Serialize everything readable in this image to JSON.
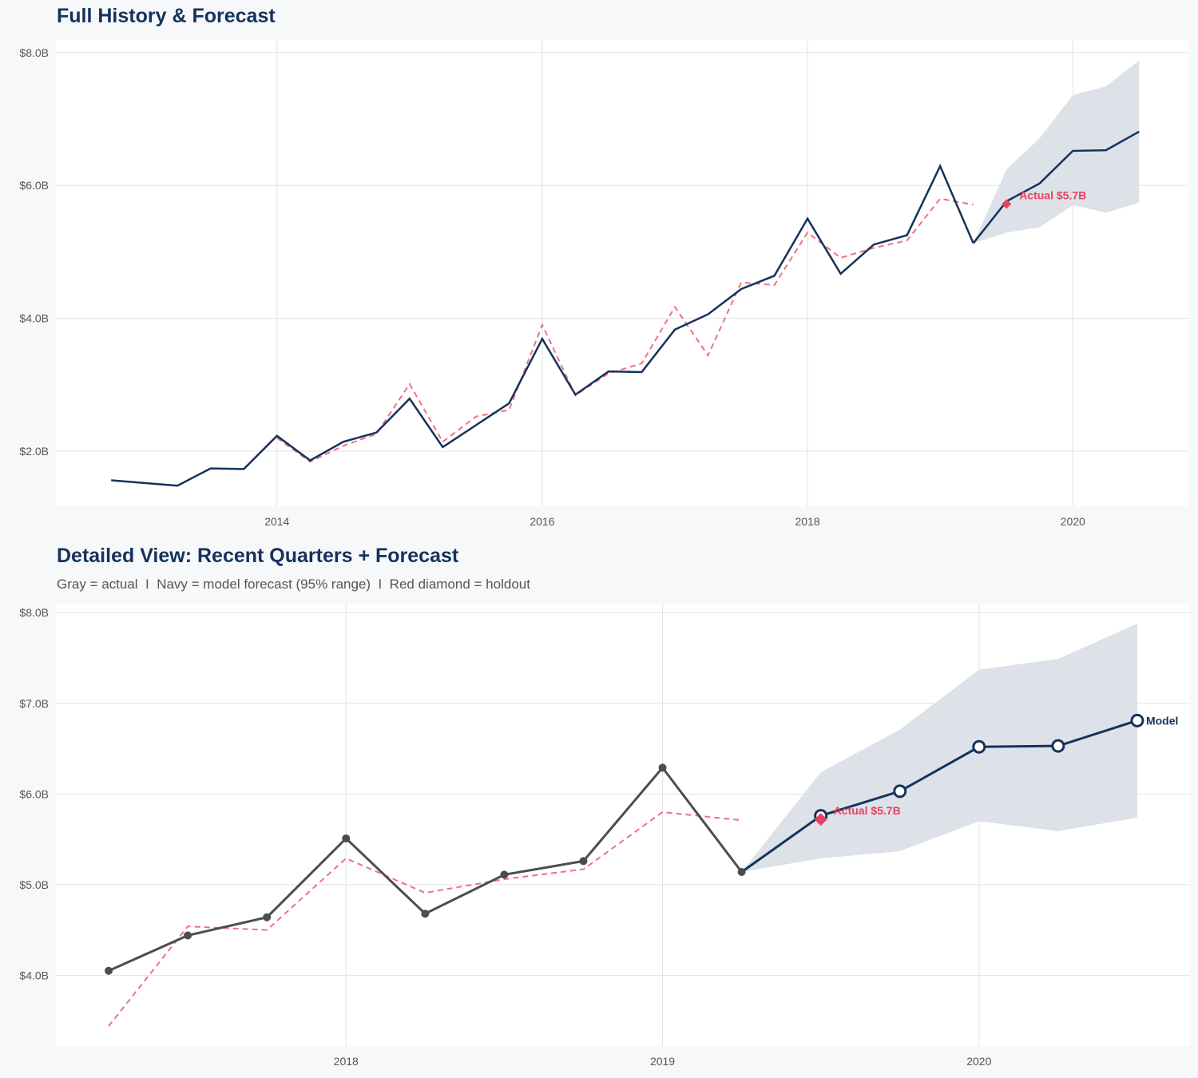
{
  "colors": {
    "navy": "#14325c",
    "gray": "#4d4d4d",
    "fitted": "#ef7088",
    "holdout": "#e8415f",
    "band": "#dbe0e7",
    "grid": "#e3e3e3"
  },
  "chart_data": [
    {
      "type": "line",
      "title": "Full History & Forecast",
      "xlim": [
        "2012-05-01",
        "2020-11-15"
      ],
      "ylim": [
        1.17,
        8.19
      ],
      "x_ticks": [
        "2014",
        "2016",
        "2018",
        "2020"
      ],
      "y_ticks": [
        {
          "value": 2,
          "label": "$2.0B"
        },
        {
          "value": 4,
          "label": "$4.0B"
        },
        {
          "value": 6,
          "label": "$6.0B"
        },
        {
          "value": 8,
          "label": "$8.0B"
        }
      ],
      "grid": true,
      "actual": {
        "x": [
          "2012-10-01",
          "2013-04-01",
          "2013-07-01",
          "2013-10-01",
          "2014-01-01",
          "2014-04-01",
          "2014-07-01",
          "2014-10-01",
          "2015-01-01",
          "2015-04-01",
          "2015-07-01",
          "2015-10-01",
          "2016-01-01",
          "2016-04-01",
          "2016-07-01",
          "2016-10-01",
          "2017-01-01",
          "2017-04-01",
          "2017-07-01",
          "2017-10-01",
          "2018-01-01",
          "2018-04-01",
          "2018-07-01",
          "2018-10-01",
          "2019-01-01",
          "2019-04-01"
        ],
        "y": [
          1.56,
          1.48,
          1.74,
          1.73,
          2.23,
          1.86,
          2.14,
          2.28,
          2.79,
          2.06,
          2.39,
          2.72,
          3.69,
          2.85,
          3.2,
          3.19,
          3.83,
          4.06,
          4.44,
          4.64,
          5.5,
          4.67,
          5.11,
          5.25,
          6.29,
          5.13
        ]
      },
      "fitted": {
        "x": [
          "2014-01-01",
          "2014-04-01",
          "2014-07-01",
          "2014-10-01",
          "2015-01-01",
          "2015-04-01",
          "2015-07-01",
          "2015-10-01",
          "2016-01-01",
          "2016-04-01",
          "2016-07-01",
          "2016-10-01",
          "2017-01-01",
          "2017-04-01",
          "2017-07-01",
          "2017-10-01",
          "2018-01-01",
          "2018-04-01",
          "2018-07-01",
          "2018-10-01",
          "2019-01-01",
          "2019-04-01"
        ],
        "y": [
          2.2,
          1.84,
          2.08,
          2.26,
          3.01,
          2.14,
          2.52,
          2.62,
          3.9,
          2.84,
          3.17,
          3.32,
          4.17,
          3.44,
          4.54,
          4.5,
          5.29,
          4.91,
          5.06,
          5.17,
          5.8,
          5.71
        ]
      },
      "forecast": {
        "x": [
          "2019-04-01",
          "2019-07-01",
          "2019-10-01",
          "2020-01-01",
          "2020-04-01",
          "2020-07-01"
        ],
        "y": [
          5.13,
          5.76,
          6.03,
          6.52,
          6.53,
          6.81
        ],
        "lower": [
          5.13,
          5.29,
          5.37,
          5.7,
          5.59,
          5.74
        ],
        "upper": [
          5.13,
          6.24,
          6.71,
          7.36,
          7.49,
          7.88
        ]
      },
      "holdout": {
        "x": "2019-07-01",
        "y": 5.72,
        "label": "Actual $5.7B"
      }
    },
    {
      "type": "line",
      "title": "Detailed View: Recent Quarters + Forecast",
      "subtitle": "Gray = actual  I  Navy = model forecast (95% range)  I  Red diamond = holdout",
      "xlim": [
        "2017-02-01",
        "2020-09-01"
      ],
      "ylim": [
        3.22,
        8.09
      ],
      "x_ticks": [
        "2018",
        "2019",
        "2020"
      ],
      "y_ticks": [
        {
          "value": 4,
          "label": "$4.0B"
        },
        {
          "value": 5,
          "label": "$5.0B"
        },
        {
          "value": 6,
          "label": "$6.0B"
        },
        {
          "value": 7,
          "label": "$7.0B"
        },
        {
          "value": 8,
          "label": "$8.0B"
        }
      ],
      "grid": true,
      "actual": {
        "x": [
          "2017-04-01",
          "2017-07-01",
          "2017-10-01",
          "2018-01-01",
          "2018-04-01",
          "2018-07-01",
          "2018-10-01",
          "2019-01-01",
          "2019-04-01"
        ],
        "y": [
          4.05,
          4.44,
          4.64,
          5.51,
          4.68,
          5.11,
          5.26,
          6.29,
          5.14
        ]
      },
      "fitted": {
        "x": [
          "2017-04-01",
          "2017-07-01",
          "2017-10-01",
          "2018-01-01",
          "2018-04-01",
          "2018-07-01",
          "2018-10-01",
          "2019-01-01",
          "2019-04-01"
        ],
        "y": [
          3.44,
          4.54,
          4.5,
          5.29,
          4.91,
          5.06,
          5.17,
          5.8,
          5.71
        ]
      },
      "forecast": {
        "x": [
          "2019-04-01",
          "2019-07-01",
          "2019-10-01",
          "2020-01-01",
          "2020-04-01",
          "2020-07-01"
        ],
        "y": [
          5.14,
          5.76,
          6.03,
          6.52,
          6.53,
          6.81
        ],
        "lower": [
          5.14,
          5.29,
          5.37,
          5.7,
          5.59,
          5.74
        ],
        "upper": [
          5.14,
          6.24,
          6.71,
          7.37,
          7.49,
          7.88
        ],
        "label": "Model"
      },
      "holdout": {
        "x": "2019-07-01",
        "y": 5.72,
        "label": "Actual $5.7B"
      }
    }
  ]
}
